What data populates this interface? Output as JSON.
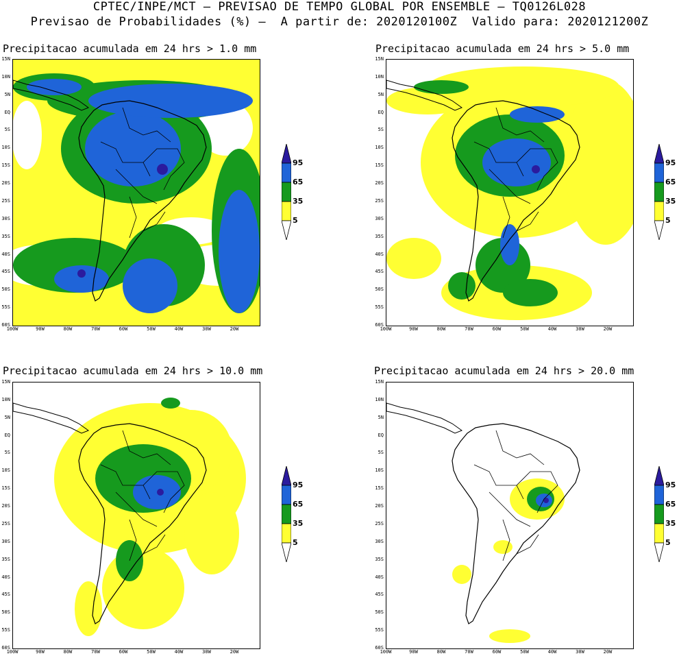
{
  "header": {
    "line1": "CPTEC/INPE/MCT – PREVISAO DE TEMPO GLOBAL POR ENSEMBLE – TQ0126L028",
    "line2": "Previsao de Probabilidades (%) –  A partir de: 2020120100Z  Valido para: 2020121200Z"
  },
  "panels": [
    {
      "title": "Precipitacao acumulada em 24 hrs > 1.0 mm",
      "coverage": "high"
    },
    {
      "title": "Precipitacao acumulada em 24 hrs > 5.0 mm",
      "coverage": "medium"
    },
    {
      "title": "Precipitacao acumulada em 24 hrs > 10.0 mm",
      "coverage": "low"
    },
    {
      "title": "Precipitacao acumulada em 24 hrs > 20.0 mm",
      "coverage": "minimal"
    }
  ],
  "lat_labels": [
    "15N",
    "10N",
    "5N",
    "EQ",
    "5S",
    "10S",
    "15S",
    "20S",
    "25S",
    "30S",
    "35S",
    "40S",
    "45S",
    "50S",
    "55S",
    "60S"
  ],
  "lon_labels": [
    "100W",
    "90W",
    "80W",
    "70W",
    "60W",
    "50W",
    "40W",
    "30W",
    "20W"
  ],
  "colorbar": {
    "labels": [
      "95",
      "65",
      "35",
      "5"
    ],
    "colors": {
      "c95": "#2b1b9e",
      "c65": "#1f64d8",
      "c35": "#169a1e",
      "c5": "#ffff33",
      "below": "#ffffff"
    }
  }
}
